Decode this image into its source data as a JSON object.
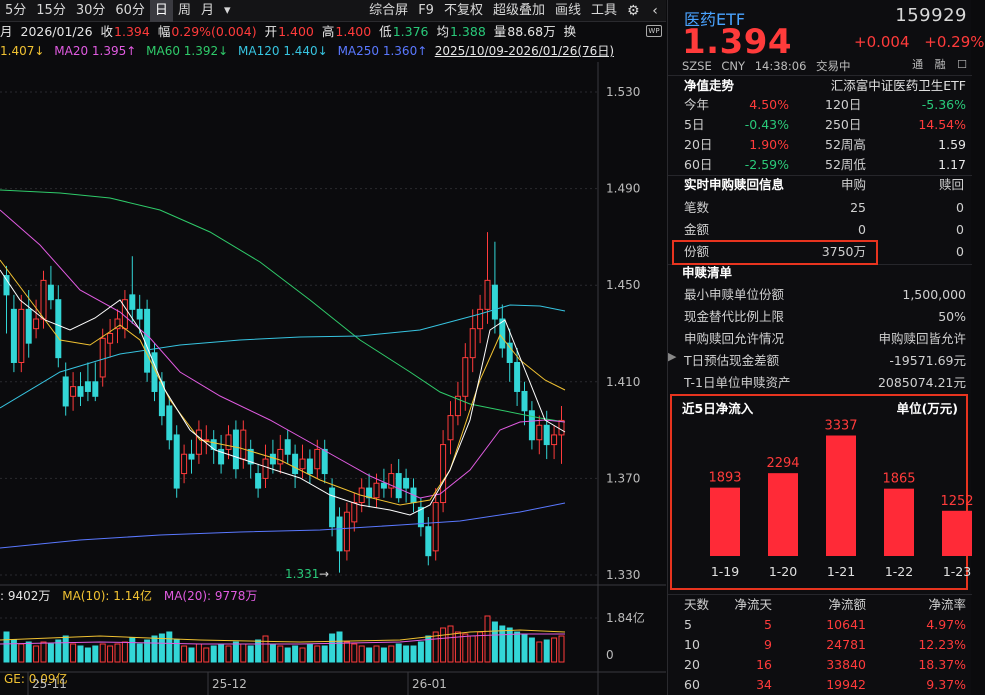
{
  "toolbar": {
    "left": [
      "5分",
      "15分",
      "30分",
      "60分",
      "日",
      "周",
      "月",
      "▾"
    ],
    "active_index": 4,
    "right": [
      "综合屏",
      "F9",
      "不复权",
      "超级叠加",
      "画线",
      "工具"
    ],
    "gear_icon": "gear-icon"
  },
  "quote": {
    "period": "月",
    "date": "2026/01/26",
    "close_label": "收",
    "close": "1.394",
    "amp_label": "幅",
    "amp": "0.29%(0.004)",
    "open_label": "开",
    "open": "1.400",
    "high_label": "高",
    "high": "1.400",
    "low_label": "低",
    "low": "1.376",
    "avg_label": "均",
    "avg": "1.388",
    "vol_label": "量",
    "vol": "88.68万",
    "turn_label": "换"
  },
  "ma": {
    "ma5": "1.407↓",
    "ma20": "MA20 1.395↑",
    "ma60": "MA60 1.392↓",
    "ma120": "MA120 1.440↓",
    "ma250": "MA250 1.360↑",
    "range": "2025/10/09-2026/01/26(76日)"
  },
  "chart": {
    "y_ticks": [
      "1.530",
      "1.490",
      "1.450",
      "1.410",
      "1.370",
      "1.330"
    ],
    "low_marker": "1.331",
    "vol_ticks": [
      "1.84亿",
      "0"
    ],
    "vol_head": {
      "v": ": 9402万",
      "ma10": "MA(10): 1.14亿",
      "ma20": "MA(20): 9778万",
      "bottom": "GE: 0.09亿"
    },
    "x_ticks": [
      "25-11",
      "25-12",
      "26-01"
    ]
  },
  "panel": {
    "title": "医药ETF",
    "code": "159929",
    "price": "1.394",
    "change": "+0.004",
    "change_pct": "+0.29%",
    "sub": [
      "SZSE",
      "CNY",
      "14:38:06",
      "交易中"
    ],
    "flags": [
      "通",
      "融",
      "☐"
    ],
    "nav_title": "净值走势",
    "fund_name": "汇添富中证医药卫生ETF",
    "perf": [
      {
        "l1": "今年",
        "v1": "4.50%",
        "c1": "red",
        "l2": "120日",
        "v2": "-5.36%",
        "c2": "green"
      },
      {
        "l1": "5日",
        "v1": "-0.43%",
        "c1": "green",
        "l2": "250日",
        "v2": "14.54%",
        "c2": "red"
      },
      {
        "l1": "20日",
        "v1": "1.90%",
        "c1": "red",
        "l2": "52周高",
        "v2": "1.59",
        "c2": "white"
      },
      {
        "l1": "60日",
        "v1": "-2.59%",
        "c1": "green",
        "l2": "52周低",
        "v2": "1.17",
        "c2": "white"
      }
    ],
    "realtime_title": "实时申购赎回信息",
    "realtime_cols": [
      "申购",
      "赎回"
    ],
    "realtime": [
      {
        "label": "笔数",
        "buy": "25",
        "redeem": "0"
      },
      {
        "label": "金额",
        "buy": "0",
        "redeem": "0"
      },
      {
        "label": "份额",
        "buy": "3750万",
        "redeem": "0"
      }
    ],
    "list_title": "申赎清单",
    "list": [
      {
        "label": "最小申赎单位份额",
        "value": "1,500,000"
      },
      {
        "label": "现金替代比例上限",
        "value": "50%"
      },
      {
        "label": "申购赎回允许情况",
        "value": "申购赎回皆允许"
      },
      {
        "label": "T日预估现金差额",
        "value": "-19571.69元"
      },
      {
        "label": "T-1日单位申赎资产",
        "value": "2085074.21元"
      }
    ],
    "inflow_title": "近5日净流入",
    "inflow_unit": "单位(万元)",
    "table_head": [
      "天数",
      "净流天",
      "净流额",
      "净流率"
    ],
    "table": [
      {
        "d": "5",
        "days": "5",
        "amt": "10641",
        "rate": "4.97%"
      },
      {
        "d": "10",
        "days": "9",
        "amt": "24781",
        "rate": "12.23%"
      },
      {
        "d": "20",
        "days": "16",
        "amt": "33840",
        "rate": "18.37%"
      },
      {
        "d": "60",
        "days": "34",
        "amt": "19942",
        "rate": "9.37%"
      }
    ]
  },
  "chart_data": {
    "type": "bar",
    "categories": [
      "1-19",
      "1-20",
      "1-21",
      "1-22",
      "1-23"
    ],
    "values": [
      1893,
      2294,
      3337,
      1865,
      1252
    ],
    "title": "近5日净流入",
    "ylabel": "单位(万元)",
    "ylim": [
      0,
      3600
    ],
    "colors": {
      "bar": "#ff2a37"
    }
  }
}
